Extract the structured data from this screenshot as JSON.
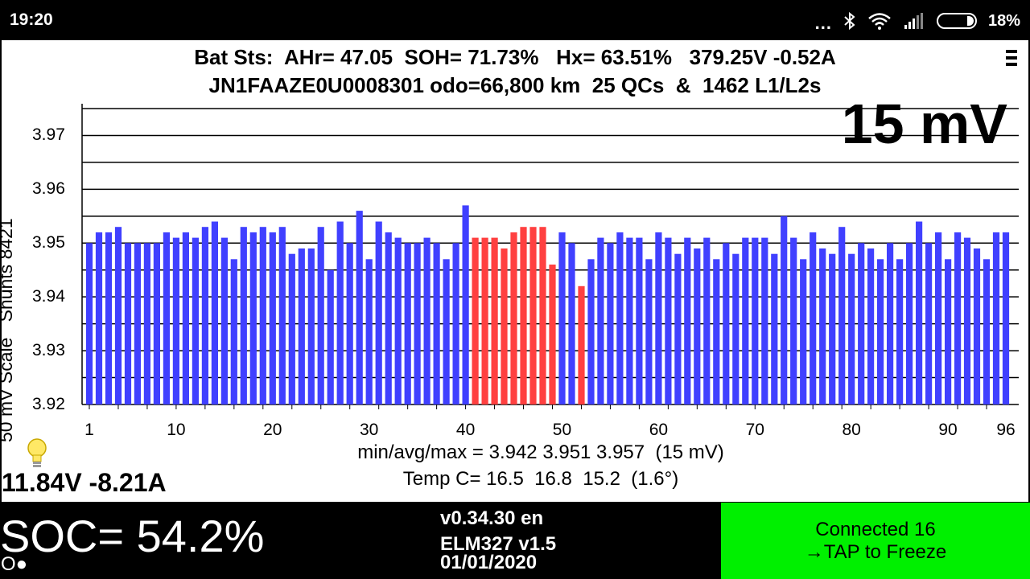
{
  "status_bar": {
    "time": "19:20",
    "dots": "...",
    "battery_percent": "18%"
  },
  "header": {
    "line1": "Bat Sts:  AHr= 47.05  SOH= 71.73%   Hx= 63.51%   379.25V -0.52A",
    "line2": "JN1FAAZE0U0008301 odo=66,800 km  25 QCs  &  1462 L1/L2s"
  },
  "scale_label": "15 mV",
  "y_axis_label": "50 mV Scale   Shunts 8421",
  "stats": {
    "minmax": "min/avg/max = 3.942 3.951 3.957  (15 mV)",
    "temp": "Temp C= 16.5  16.8  15.2  (1.6°)"
  },
  "aux_battery": "11.84V -8.21A",
  "soc": "SOC= 54.2%",
  "indicator": "O●",
  "version": {
    "app": "v0.34.30 en",
    "adapter": "ELM327 v1.5",
    "date": "01/01/2020"
  },
  "connection": {
    "line1": "Connected 16",
    "line2": "→TAP to Freeze"
  },
  "colors": {
    "bar_normal": "#4040ff",
    "bar_shunt": "#ff4040",
    "connect_bg": "#00f000"
  },
  "chart_data": {
    "type": "bar",
    "ylim": [
      3.92,
      3.975
    ],
    "y_ticks": [
      "3.97",
      "3.96",
      "3.95",
      "3.94",
      "3.93",
      "3.92"
    ],
    "x_ticks": [
      "1",
      "10",
      "20",
      "30",
      "40",
      "50",
      "60",
      "70",
      "80",
      "90",
      "96"
    ],
    "shunted_cells": [
      41,
      42,
      43,
      44,
      45,
      46,
      47,
      48,
      49,
      52
    ],
    "values": [
      3.95,
      3.952,
      3.952,
      3.953,
      3.95,
      3.95,
      3.95,
      3.95,
      3.952,
      3.951,
      3.952,
      3.951,
      3.953,
      3.954,
      3.951,
      3.947,
      3.953,
      3.952,
      3.953,
      3.952,
      3.953,
      3.948,
      3.949,
      3.949,
      3.953,
      3.945,
      3.954,
      3.95,
      3.956,
      3.947,
      3.954,
      3.952,
      3.951,
      3.95,
      3.95,
      3.951,
      3.95,
      3.947,
      3.95,
      3.957,
      3.951,
      3.951,
      3.951,
      3.949,
      3.952,
      3.953,
      3.953,
      3.953,
      3.946,
      3.952,
      3.95,
      3.942,
      3.947,
      3.951,
      3.95,
      3.952,
      3.951,
      3.951,
      3.947,
      3.952,
      3.951,
      3.948,
      3.951,
      3.949,
      3.951,
      3.947,
      3.95,
      3.948,
      3.951,
      3.951,
      3.951,
      3.948,
      3.955,
      3.951,
      3.947,
      3.952,
      3.949,
      3.948,
      3.953,
      3.948,
      3.95,
      3.949,
      3.947,
      3.95,
      3.947,
      3.95,
      3.954,
      3.95,
      3.952,
      3.947,
      3.952,
      3.951,
      3.949,
      3.947,
      3.952,
      3.952
    ]
  }
}
